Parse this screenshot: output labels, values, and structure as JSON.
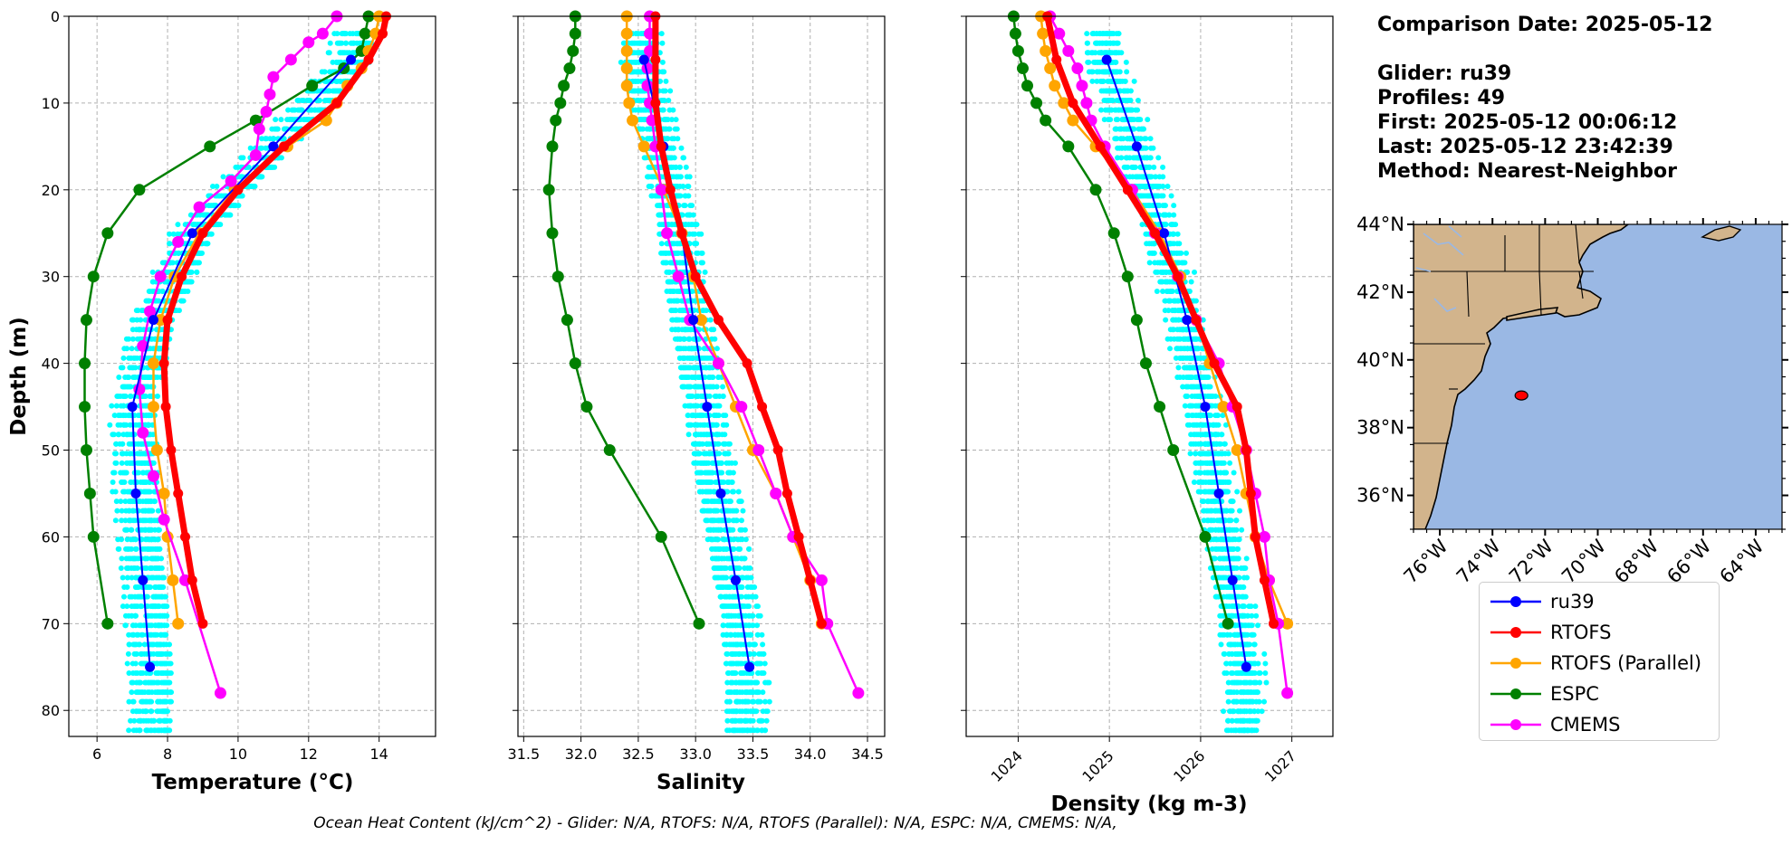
{
  "info": {
    "comparison": "Comparison Date: 2025-05-12",
    "glider": "Glider: ru39",
    "profiles": "Profiles: 49",
    "first": "First: 2025-05-12 00:06:12",
    "last": "Last: 2025-05-12 23:42:39",
    "method": "Method: Nearest-Neighbor"
  },
  "footer": "Ocean Heat Content (kJ/cm^2) - Glider: N/A,  RTOFS: N/A,  RTOFS (Parallel): N/A,  ESPC: N/A,  CMEMS: N/A,",
  "colors": {
    "ru39": "#0000ff",
    "RTOFS": "#ff0000",
    "RTOFS (Parallel)": "#ffa500",
    "ESPC": "#008000",
    "CMEMS": "#ff00ff",
    "glider_points": "#00ffff",
    "land": "#d2b48c",
    "ocean": "#9ab8e4"
  },
  "chart_data": [
    {
      "type": "line",
      "xlabel": "Temperature (°C)",
      "ylabel": "Depth (m)",
      "xlim": [
        5.2,
        15.6
      ],
      "ylim": [
        83,
        0
      ],
      "xticks": [
        6,
        8,
        10,
        12,
        14
      ],
      "yticks": [
        0,
        10,
        20,
        30,
        40,
        50,
        60,
        70,
        80
      ],
      "grid": true,
      "series": [
        {
          "name": "ru39",
          "depth": [
            5,
            15,
            25,
            35,
            45,
            55,
            65,
            75
          ],
          "values": [
            13.2,
            11.0,
            8.7,
            7.6,
            7.0,
            7.1,
            7.3,
            7.5
          ]
        },
        {
          "name": "RTOFS",
          "depth": [
            0,
            2,
            5,
            10,
            15,
            20,
            25,
            30,
            35,
            40,
            45,
            50,
            55,
            60,
            65,
            70
          ],
          "values": [
            14.2,
            14.1,
            13.7,
            12.8,
            11.3,
            10.0,
            9.0,
            8.4,
            8.0,
            7.9,
            7.95,
            8.1,
            8.3,
            8.5,
            8.7,
            9.0
          ]
        },
        {
          "name": "RTOFS (Parallel)",
          "depth": [
            0,
            2,
            4,
            6,
            8,
            10,
            12,
            15,
            20,
            25,
            30,
            35,
            40,
            45,
            50,
            55,
            60,
            65,
            70
          ],
          "values": [
            14.0,
            13.9,
            13.7,
            13.5,
            13.1,
            12.8,
            12.5,
            11.4,
            9.9,
            8.9,
            8.2,
            7.8,
            7.6,
            7.6,
            7.7,
            7.9,
            8.0,
            8.15,
            8.3
          ]
        },
        {
          "name": "ESPC",
          "depth": [
            0,
            2,
            4,
            6,
            8,
            12,
            15,
            20,
            25,
            30,
            35,
            40,
            45,
            50,
            55,
            60,
            70
          ],
          "values": [
            13.7,
            13.6,
            13.5,
            13.0,
            12.1,
            10.5,
            9.2,
            7.2,
            6.3,
            5.9,
            5.7,
            5.65,
            5.65,
            5.7,
            5.8,
            5.9,
            6.3
          ]
        },
        {
          "name": "CMEMS",
          "depth": [
            0,
            2,
            3,
            5,
            7,
            9,
            11,
            13,
            16,
            19,
            22,
            26,
            30,
            34,
            38,
            43,
            48,
            53,
            58,
            65,
            78
          ],
          "values": [
            12.8,
            12.4,
            12.0,
            11.5,
            11.0,
            10.9,
            10.8,
            10.6,
            10.5,
            9.8,
            8.9,
            8.3,
            7.8,
            7.5,
            7.3,
            7.2,
            7.3,
            7.6,
            7.9,
            8.5,
            9.5
          ]
        }
      ]
    },
    {
      "type": "line",
      "xlabel": "Salinity",
      "xlim": [
        31.45,
        34.65
      ],
      "ylim": [
        83,
        0
      ],
      "xticks": [
        31.5,
        32.0,
        32.5,
        33.0,
        33.5,
        34.0,
        34.5
      ],
      "yticks": [
        0,
        10,
        20,
        30,
        40,
        50,
        60,
        70,
        80
      ],
      "grid": true,
      "series": [
        {
          "name": "ru39",
          "depth": [
            5,
            15,
            25,
            35,
            45,
            55,
            65,
            75
          ],
          "values": [
            32.55,
            32.72,
            32.88,
            32.98,
            33.1,
            33.22,
            33.35,
            33.47
          ]
        },
        {
          "name": "RTOFS",
          "depth": [
            0,
            5,
            10,
            15,
            20,
            25,
            30,
            35,
            40,
            45,
            50,
            55,
            60,
            65,
            70
          ],
          "values": [
            32.65,
            32.65,
            32.65,
            32.7,
            32.78,
            32.88,
            33.0,
            33.2,
            33.45,
            33.58,
            33.72,
            33.8,
            33.9,
            34.0,
            34.1
          ]
        },
        {
          "name": "RTOFS (Parallel)",
          "depth": [
            0,
            2,
            4,
            6,
            8,
            10,
            12,
            15,
            20,
            25,
            30,
            35,
            40,
            45,
            50,
            55,
            60,
            65,
            70
          ],
          "values": [
            32.4,
            32.4,
            32.4,
            32.4,
            32.4,
            32.42,
            32.45,
            32.55,
            32.72,
            32.88,
            32.98,
            33.05,
            33.2,
            33.35,
            33.5,
            33.7,
            33.85,
            34.0,
            34.1
          ]
        },
        {
          "name": "ESPC",
          "depth": [
            0,
            2,
            4,
            6,
            8,
            10,
            12,
            15,
            20,
            25,
            30,
            35,
            40,
            45,
            50,
            60,
            70
          ],
          "values": [
            31.95,
            31.95,
            31.93,
            31.9,
            31.85,
            31.82,
            31.78,
            31.75,
            31.72,
            31.75,
            31.8,
            31.88,
            31.95,
            32.05,
            32.25,
            32.7,
            33.03
          ]
        },
        {
          "name": "CMEMS",
          "depth": [
            0,
            2,
            4,
            6,
            8,
            10,
            12,
            15,
            20,
            25,
            30,
            35,
            40,
            45,
            50,
            55,
            60,
            65,
            70,
            78
          ],
          "values": [
            32.6,
            32.6,
            32.6,
            32.58,
            32.58,
            32.6,
            32.62,
            32.65,
            32.7,
            32.75,
            32.85,
            32.95,
            33.2,
            33.4,
            33.55,
            33.7,
            33.85,
            34.1,
            34.15,
            34.42
          ]
        }
      ]
    },
    {
      "type": "line",
      "xlabel": "Density (kg m-3)",
      "xlim": [
        1023.43,
        1027.45
      ],
      "ylim": [
        83,
        0
      ],
      "xticks": [
        1024,
        1025,
        1026,
        1027
      ],
      "yticks": [
        0,
        10,
        20,
        30,
        40,
        50,
        60,
        70,
        80
      ],
      "grid": true,
      "series": [
        {
          "name": "ru39",
          "depth": [
            5,
            15,
            25,
            35,
            45,
            55,
            65,
            75
          ],
          "values": [
            1024.97,
            1025.3,
            1025.6,
            1025.85,
            1026.05,
            1026.2,
            1026.35,
            1026.5
          ]
        },
        {
          "name": "RTOFS",
          "depth": [
            0,
            5,
            10,
            15,
            20,
            25,
            30,
            35,
            40,
            45,
            50,
            55,
            60,
            65,
            70
          ],
          "values": [
            1024.32,
            1024.42,
            1024.6,
            1024.9,
            1025.2,
            1025.5,
            1025.75,
            1025.95,
            1026.15,
            1026.4,
            1026.5,
            1026.55,
            1026.6,
            1026.7,
            1026.8
          ]
        },
        {
          "name": "RTOFS (Parallel)",
          "depth": [
            0,
            2,
            4,
            6,
            8,
            10,
            12,
            15,
            20,
            25,
            30,
            35,
            40,
            45,
            50,
            55,
            60,
            65,
            70
          ],
          "values": [
            1024.25,
            1024.27,
            1024.3,
            1024.35,
            1024.4,
            1024.5,
            1024.6,
            1024.85,
            1025.25,
            1025.55,
            1025.78,
            1025.95,
            1026.1,
            1026.25,
            1026.4,
            1026.5,
            1026.6,
            1026.75,
            1026.95
          ]
        },
        {
          "name": "ESPC",
          "depth": [
            0,
            2,
            4,
            6,
            8,
            10,
            12,
            15,
            20,
            25,
            30,
            35,
            40,
            45,
            50,
            60,
            70
          ],
          "values": [
            1023.95,
            1023.97,
            1024.0,
            1024.05,
            1024.1,
            1024.2,
            1024.3,
            1024.55,
            1024.85,
            1025.05,
            1025.2,
            1025.3,
            1025.4,
            1025.55,
            1025.7,
            1026.05,
            1026.3
          ]
        },
        {
          "name": "CMEMS",
          "depth": [
            0,
            2,
            4,
            6,
            8,
            10,
            12,
            15,
            20,
            25,
            30,
            35,
            40,
            45,
            50,
            55,
            60,
            65,
            70,
            78
          ],
          "values": [
            1024.35,
            1024.45,
            1024.55,
            1024.65,
            1024.7,
            1024.75,
            1024.8,
            1024.95,
            1025.25,
            1025.5,
            1025.75,
            1025.95,
            1026.2,
            1026.35,
            1026.5,
            1026.6,
            1026.7,
            1026.75,
            1026.85,
            1026.95
          ]
        }
      ]
    },
    {
      "type": "map",
      "lon_ticks": [
        "76°W",
        "74°W",
        "72°W",
        "70°W",
        "68°W",
        "66°W",
        "64°W"
      ],
      "lat_ticks": [
        "44°N",
        "42°N",
        "40°N",
        "38°N",
        "36°N"
      ],
      "lon_range": [
        -77,
        -63
      ],
      "lat_range": [
        35,
        44
      ],
      "glider_position": {
        "lon": -72.9,
        "lat": 38.95
      }
    }
  ]
}
